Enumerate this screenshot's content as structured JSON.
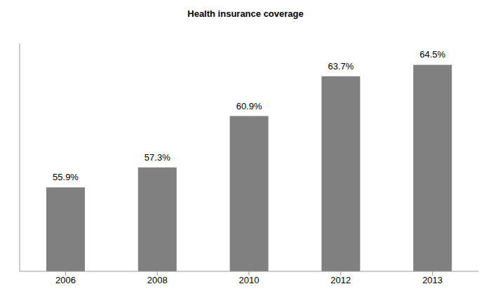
{
  "chart_data": {
    "type": "bar",
    "title": "Health insurance coverage",
    "categories": [
      "2006",
      "2008",
      "2010",
      "2012",
      "2013"
    ],
    "values": [
      55.9,
      57.3,
      60.9,
      63.7,
      64.5
    ],
    "value_labels": [
      "55.9%",
      "57.3%",
      "60.9%",
      "63.7%",
      "64.5%"
    ],
    "color": "#808080",
    "ylim": [
      50,
      66
    ],
    "grid": false,
    "data_labels": true,
    "tick_labels": "x"
  }
}
